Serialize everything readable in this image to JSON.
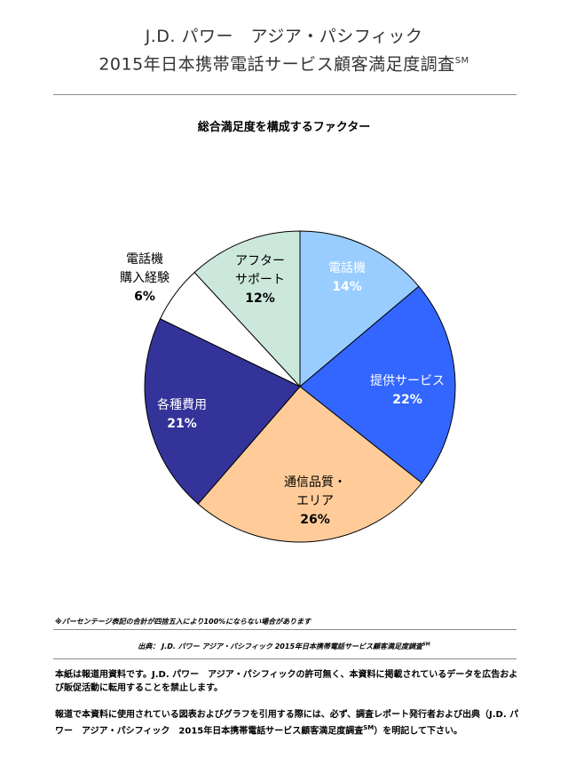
{
  "header": {
    "line1": "J.D. パワー　アジア・パシフィック",
    "line2": "2015年日本携帯電話サービス顧客満足度調査",
    "line2_sup": "SM"
  },
  "chart_data": {
    "type": "pie",
    "title": "総合満足度を構成するファクター",
    "slices": [
      {
        "label_lines": [
          "電話機"
        ],
        "value": 14,
        "value_label": "14%",
        "color": "#99ccff",
        "text_color": "#ffffff"
      },
      {
        "label_lines": [
          "提供サービス"
        ],
        "value": 22,
        "value_label": "22%",
        "color": "#3366ff",
        "text_color": "#ffffff"
      },
      {
        "label_lines": [
          "通信品質・",
          "エリア"
        ],
        "value": 26,
        "value_label": "26%",
        "color": "#ffcc99",
        "text_color": "#000000"
      },
      {
        "label_lines": [
          "各種費用"
        ],
        "value": 21,
        "value_label": "21%",
        "color": "#333399",
        "text_color": "#ffffff"
      },
      {
        "label_lines": [
          "電話機",
          "購入経験"
        ],
        "value": 6,
        "value_label": "6%",
        "color": "#ffffff",
        "text_color": "#000000"
      },
      {
        "label_lines": [
          "アフター",
          "サポート"
        ],
        "value": 12,
        "value_label": "12%",
        "color": "#cce8dc",
        "text_color": "#000000"
      }
    ]
  },
  "footnote": "※パーセンテージ表記の合計が四捨五入により100%にならない場合があります",
  "source": {
    "text": "出典： J.D. パワー アジア・パシフィック 2015年日本携帯電話サービス顧客満足度調査",
    "sup": "SM"
  },
  "notice1": "本紙は報道用資料です。J.D. パワー　アジア・パシフィックの許可無く、本資料に掲載されているデータを広告および販促活動に転用することを禁止します。",
  "notice2_main": "報道で本資料に使用されている図表およびグラフを引用する際には、必ず、調査レポート発行者および出典（J.D. パワー　アジア・パシフィック　2015年日本携帯電話サービス顧客満足度調査",
  "notice2_sup": "SM",
  "notice2_end": "）を明記して下さい。"
}
